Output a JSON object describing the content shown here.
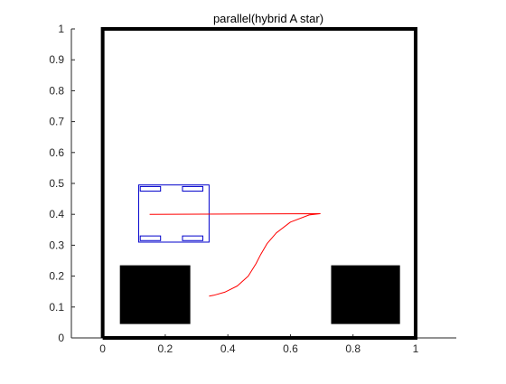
{
  "chart_data": {
    "type": "line",
    "title": "parallel(hybrid A star)",
    "xlabel": "",
    "ylabel": "",
    "xlim": [
      -0.1,
      1.13
    ],
    "ylim": [
      0,
      1
    ],
    "xticks": [
      0,
      0.2,
      0.4,
      0.6,
      0.8,
      1
    ],
    "xtick_labels": [
      "0",
      "0.2",
      "0.4",
      "0.6",
      "0.8",
      "1"
    ],
    "yticks": [
      0,
      0.1,
      0.2,
      0.3,
      0.4,
      0.5,
      0.6,
      0.7,
      0.8,
      0.9,
      1
    ],
    "ytick_labels": [
      "0",
      "0.1",
      "0.2",
      "0.3",
      "0.4",
      "0.5",
      "0.6",
      "0.7",
      "0.8",
      "0.9",
      "1"
    ],
    "grid": false,
    "boundary": {
      "x": [
        0,
        1,
        1,
        0,
        0
      ],
      "y": [
        0,
        0,
        1,
        1,
        0
      ],
      "color": "#000000"
    },
    "obstacles": [
      {
        "x": [
          0.055,
          0.28
        ],
        "y": [
          0.045,
          0.235
        ],
        "color": "#000000"
      },
      {
        "x": [
          0.73,
          0.95
        ],
        "y": [
          0.045,
          0.235
        ],
        "color": "#000000"
      }
    ],
    "vehicle": {
      "body": {
        "x": [
          0.115,
          0.34
        ],
        "y": [
          0.31,
          0.495
        ]
      },
      "wheels": [
        {
          "x": [
            0.12,
            0.185
          ],
          "y": [
            0.475,
            0.49
          ]
        },
        {
          "x": [
            0.255,
            0.32
          ],
          "y": [
            0.475,
            0.49
          ]
        },
        {
          "x": [
            0.12,
            0.185
          ],
          "y": [
            0.315,
            0.33
          ]
        },
        {
          "x": [
            0.255,
            0.32
          ],
          "y": [
            0.315,
            0.33
          ]
        }
      ],
      "color": "#0000cc"
    },
    "path": {
      "color": "#ff0000",
      "x": [
        0.15,
        0.695,
        0.66,
        0.6,
        0.555,
        0.525,
        0.505,
        0.49,
        0.465,
        0.43,
        0.39,
        0.355,
        0.34
      ],
      "y": [
        0.4,
        0.402,
        0.398,
        0.375,
        0.34,
        0.305,
        0.27,
        0.24,
        0.2,
        0.168,
        0.148,
        0.138,
        0.135
      ]
    }
  }
}
